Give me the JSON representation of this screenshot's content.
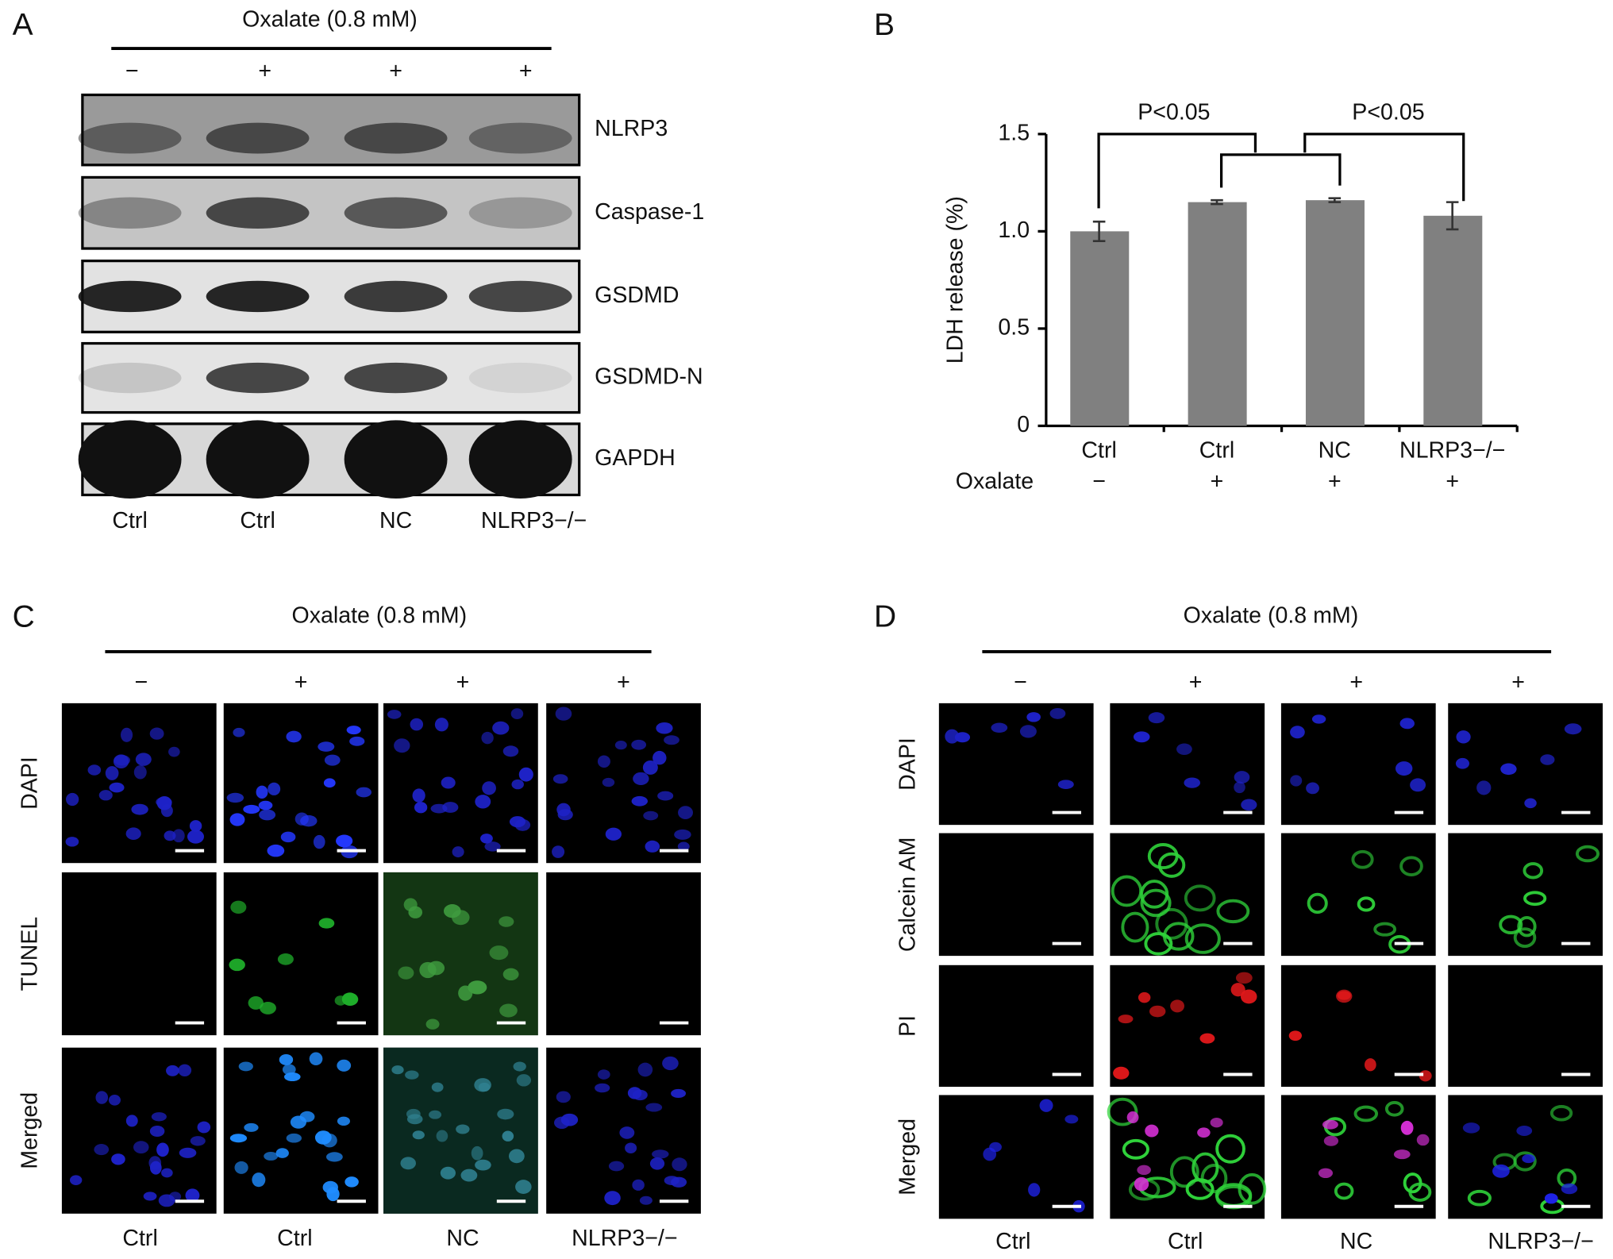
{
  "panel_a": {
    "label": "A",
    "treatment": "Oxalate (0.8 mM)",
    "signs": [
      "−",
      "+",
      "+",
      "+"
    ],
    "proteins": [
      "NLRP3",
      "Caspase-1",
      "GSDMD",
      "GSDMD-N",
      "GAPDH"
    ],
    "lanes": [
      "Ctrl",
      "Ctrl",
      "NC",
      "NLRP3−/−"
    ]
  },
  "chart_data": {
    "type": "bar",
    "panel_label": "B",
    "ylabel": "LDH release (%)",
    "categories": [
      "Ctrl",
      "Ctrl",
      "NC",
      "NLRP3−/−"
    ],
    "treatment_label": "Oxalate",
    "treatment_signs": [
      "−",
      "+",
      "+",
      "+"
    ],
    "values": [
      1.0,
      1.15,
      1.16,
      1.08
    ],
    "errors": [
      0.05,
      0.01,
      0.01,
      0.07
    ],
    "color": "#808080",
    "ylim": [
      0,
      1.5
    ],
    "yticks": [
      0,
      0.5,
      {
        "value": 1,
        "label": "1.0"
      },
      1.5
    ],
    "annotations": [
      "P<0.05",
      "P<0.05"
    ]
  },
  "panel_c": {
    "label": "C",
    "treatment": "Oxalate (0.8 mM)",
    "signs": [
      "−",
      "+",
      "+",
      "+"
    ],
    "stains": [
      "DAPI",
      "TUNEL",
      "Merged"
    ],
    "groups": [
      "Ctrl",
      "Ctrl",
      "NC",
      "NLRP3−/−"
    ]
  },
  "panel_d": {
    "label": "D",
    "treatment": "Oxalate (0.8 mM)",
    "signs": [
      "−",
      "+",
      "+",
      "+"
    ],
    "stains": [
      "DAPI",
      "Calcein AM",
      "PI",
      "Merged"
    ],
    "groups": [
      "Ctrl",
      "Ctrl",
      "NC",
      "NLRP3−/−"
    ]
  }
}
